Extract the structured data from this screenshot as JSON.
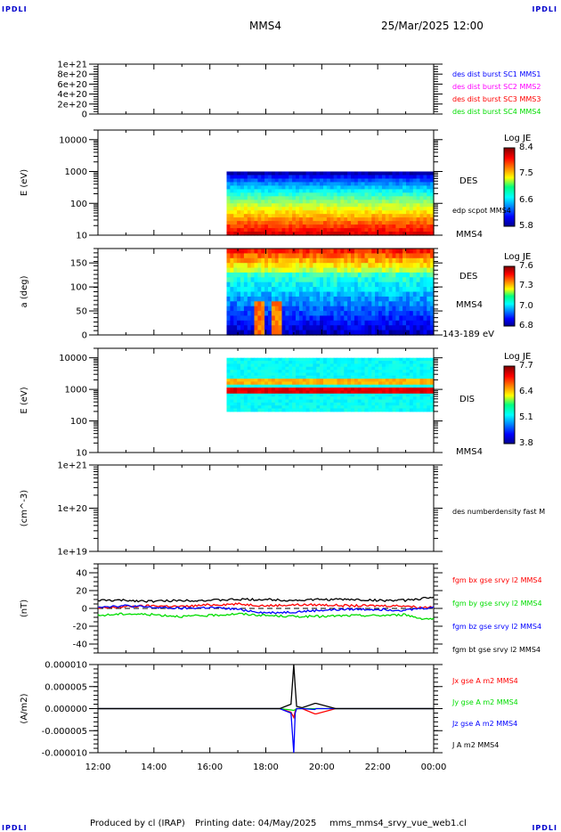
{
  "header": {
    "corner_tag": "IPDLI",
    "spacecraft": "MMS4",
    "start_time": "25/Mar/2025 12:00"
  },
  "footer": {
    "produced_by": "Produced by cl (IRAP)",
    "printing_date": "Printing date: 04/May/2025",
    "script_name": "mms_mms4_srvy_vue_web1.cl"
  },
  "chart_data": [
    {
      "id": "burst",
      "type": "line",
      "ylabel": "",
      "yscale": "linear",
      "ylim": [
        0,
        1e+21
      ],
      "yticks": [
        "0",
        "2e+20",
        "4e+20",
        "6e+20",
        "8e+20",
        "1e+21"
      ],
      "ytick_values": [
        0,
        2e+20,
        4e+20,
        6e+20,
        8e+20,
        1e+21
      ],
      "dashed_zero_line": true,
      "legend": [
        {
          "label": "des dist burst SC1 MMS1",
          "color": "#0000ff"
        },
        {
          "label": "des dist burst SC2 MMS2",
          "color": "#ff00ff"
        },
        {
          "label": "des dist burst SC3 MMS3",
          "color": "#ff0000"
        },
        {
          "label": "des dist burst SC4 MMS4",
          "color": "#00dd00"
        }
      ],
      "series": []
    },
    {
      "id": "des-energy",
      "type": "heatmap",
      "ylabel": "E (eV)",
      "yscale": "log",
      "ylim": [
        10,
        20000
      ],
      "yticks": [
        "10",
        "100",
        "1000",
        "10000"
      ],
      "ytick_values": [
        10,
        100,
        1000,
        10000
      ],
      "data_start_hour": 16.6,
      "data_energy_range": [
        10,
        1000
      ],
      "side_labels": [
        "DES",
        "edp scpot MMS4",
        "MMS4"
      ],
      "colorbar": {
        "title": "Log JE",
        "ticks": [
          "8.4",
          "7.5",
          "6.6",
          "5.8"
        ],
        "min": 5.8,
        "max": 8.4
      },
      "description": "Peak flux (~8.3) at 20-60 eV, decreasing to ~5.8 near 1000 eV"
    },
    {
      "id": "des-pitch",
      "type": "heatmap",
      "ylabel": "a (deg)",
      "yscale": "linear",
      "ylim": [
        0,
        180
      ],
      "yticks": [
        "0",
        "50",
        "100",
        "150"
      ],
      "ytick_values": [
        0,
        50,
        100,
        150
      ],
      "data_start_hour": 16.6,
      "side_labels": [
        "DES",
        "MMS4",
        "143-189 eV"
      ],
      "colorbar": {
        "title": "Log JE",
        "ticks": [
          "7.6",
          "7.3",
          "7.0",
          "6.8"
        ],
        "min": 6.8,
        "max": 7.6
      },
      "description": "High flux at 140-180 deg; low flux below 90 deg with intense bursts near 17:30-18:10"
    },
    {
      "id": "dis-energy",
      "type": "heatmap",
      "ylabel": "E (eV)",
      "yscale": "log",
      "ylim": [
        10,
        20000
      ],
      "yticks": [
        "10",
        "100",
        "1000",
        "10000"
      ],
      "ytick_values": [
        10,
        100,
        1000,
        10000
      ],
      "data_start_hour": 16.6,
      "data_energy_range": [
        200,
        10000
      ],
      "side_labels": [
        "DIS",
        "MMS4"
      ],
      "colorbar": {
        "title": "Log JE",
        "ticks": [
          "7.7",
          "6.4",
          "5.1",
          "3.8"
        ],
        "min": 3.8,
        "max": 7.7
      },
      "description": "Peak flux band at ~600-900 eV, secondary band at ~1500 eV"
    },
    {
      "id": "density",
      "type": "line",
      "ylabel": "(cm^-3)",
      "yscale": "log",
      "ylim": [
        1e+19,
        1e+21
      ],
      "yticks": [
        "1e+19",
        "1e+20",
        "1e+21"
      ],
      "ytick_values": [
        1e+19,
        1e+20,
        1e+21
      ],
      "legend": [
        {
          "label": "des numberdensity fast M",
          "color": "#000000"
        }
      ],
      "series": []
    },
    {
      "id": "fgm",
      "type": "line",
      "ylabel": "(nT)",
      "yscale": "linear",
      "ylim": [
        -50,
        50
      ],
      "yticks": [
        "-40",
        "-20",
        "0",
        "20",
        "40"
      ],
      "ytick_values": [
        -40,
        -20,
        0,
        20,
        40
      ],
      "dashed_zero_line": true,
      "x": [
        12,
        13,
        14,
        15,
        16,
        17,
        18,
        19,
        20,
        21,
        22,
        23,
        23.5,
        24
      ],
      "series": [
        {
          "name": "fgm bx gse srvy l2 MMS4",
          "color": "#ff0000",
          "values": [
            0,
            2,
            3,
            2,
            4,
            5,
            3,
            4,
            4,
            3,
            3,
            3,
            1,
            2
          ]
        },
        {
          "name": "fgm by gse srvy l2 MMS4",
          "color": "#00dd00",
          "values": [
            -8,
            -6,
            -7,
            -9,
            -8,
            -6,
            -8,
            -9,
            -9,
            -8,
            -8,
            -7,
            -11,
            -12
          ]
        },
        {
          "name": "fgm bz gse srvy l2 MMS4",
          "color": "#0000ff",
          "values": [
            2,
            3,
            1,
            0,
            1,
            -1,
            -5,
            -4,
            -2,
            -1,
            -1,
            -2,
            0,
            1
          ]
        },
        {
          "name": "fgm bt gse srvy l2 MMS4",
          "color": "#000000",
          "values": [
            9,
            9,
            8,
            9,
            9,
            10,
            10,
            9,
            10,
            10,
            9,
            9,
            11,
            12
          ]
        }
      ]
    },
    {
      "id": "current",
      "type": "line",
      "ylabel": "(A/m2)",
      "yscale": "linear",
      "ylim": [
        -1e-05,
        1e-05
      ],
      "yticks": [
        "-0.000010",
        "-0.000005",
        "0.000000",
        "0.000005",
        "0.000010"
      ],
      "ytick_values": [
        -1e-05,
        -5e-06,
        0,
        5e-06,
        1e-05
      ],
      "x": [
        12,
        18.5,
        18.9,
        19.0,
        19.05,
        19.1,
        19.3,
        19.75,
        19.8,
        20.5,
        24
      ],
      "series": [
        {
          "name": "Jx gse A m2 MMS4",
          "color": "#ff0000",
          "values": [
            0,
            0,
            -8e-07,
            -2e-06,
            -6e-07,
            0,
            0,
            -1.2e-06,
            -1.2e-06,
            0,
            0
          ]
        },
        {
          "name": "Jy gse A m2 MMS4",
          "color": "#00dd00",
          "values": [
            0,
            0,
            -3e-07,
            -4e-07,
            -2e-07,
            0,
            0,
            0,
            0,
            0,
            0
          ]
        },
        {
          "name": "Jz gse A m2 MMS4",
          "color": "#0000ff",
          "values": [
            0,
            0,
            -1e-06,
            -1e-05,
            -1e-06,
            0,
            0,
            -2e-07,
            0,
            0,
            0
          ]
        },
        {
          "name": "J A m2 MMS4",
          "color": "#000000",
          "values": [
            0,
            0,
            1e-06,
            1e-05,
            5e-06,
            5e-07,
            2e-07,
            1.2e-06,
            1.2e-06,
            0,
            0
          ]
        }
      ]
    }
  ],
  "xaxis": {
    "range_hours": [
      12,
      24
    ],
    "ticks": [
      "12:00",
      "14:00",
      "16:00",
      "18:00",
      "20:00",
      "22:00",
      "00:00"
    ],
    "tick_values": [
      12,
      14,
      16,
      18,
      20,
      22,
      24
    ]
  }
}
